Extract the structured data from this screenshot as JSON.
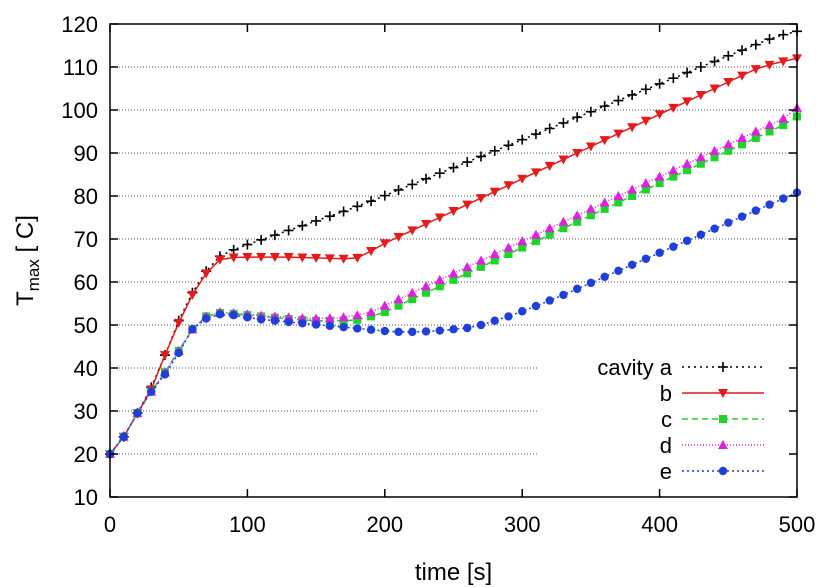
{
  "chart_data": {
    "type": "line",
    "xlabel": "time [s]",
    "ylabel_main": "T",
    "ylabel_sub": "max",
    "ylabel_rest": " [ C]",
    "xlim": [
      0,
      500
    ],
    "ylim": [
      10,
      120
    ],
    "xticks": [
      0,
      100,
      200,
      300,
      400,
      500
    ],
    "yticks": [
      10,
      20,
      30,
      40,
      50,
      60,
      70,
      80,
      90,
      100,
      110,
      120
    ],
    "grid": "horizontal-dotted",
    "legend_position": "bottom-right",
    "x": [
      0,
      10,
      20,
      30,
      40,
      50,
      60,
      70,
      80,
      90,
      100,
      110,
      120,
      130,
      140,
      150,
      160,
      170,
      180,
      190,
      200,
      210,
      220,
      230,
      240,
      250,
      260,
      270,
      280,
      290,
      300,
      310,
      320,
      330,
      340,
      350,
      360,
      370,
      380,
      390,
      400,
      410,
      420,
      430,
      440,
      450,
      460,
      470,
      480,
      490,
      500
    ],
    "series": [
      {
        "name": "cavity a",
        "color": "#000000",
        "dash": "2,4",
        "marker": "plus",
        "values": [
          20,
          24,
          29.5,
          35.5,
          43,
          51,
          57.5,
          62.5,
          66,
          67.5,
          68.7,
          69.8,
          70.9,
          72,
          73.1,
          74.2,
          75.3,
          76.4,
          77.6,
          78.8,
          80.1,
          81.4,
          82.7,
          84,
          85.3,
          86.6,
          87.9,
          89.2,
          90.5,
          91.8,
          93.1,
          94.4,
          95.7,
          97,
          98.3,
          99.6,
          100.9,
          102.2,
          103.5,
          104.8,
          106.1,
          107.4,
          108.7,
          110,
          111.3,
          112.6,
          113.9,
          115.2,
          116.5,
          117.5,
          118.3
        ]
      },
      {
        "name": "b",
        "color": "#e41a1c",
        "dash": "",
        "marker": "triangle-down",
        "values": [
          20,
          24,
          29.5,
          35,
          43,
          50.5,
          57,
          62,
          65.2,
          65.7,
          65.8,
          65.8,
          65.8,
          65.8,
          65.7,
          65.6,
          65.5,
          65.4,
          65.6,
          67.2,
          69,
          70.5,
          72,
          73.5,
          75,
          76.5,
          78,
          79.5,
          81,
          82.5,
          84,
          85.5,
          87,
          88.5,
          90,
          91.5,
          93,
          94.5,
          96,
          97.5,
          99,
          100.5,
          102,
          103.5,
          105,
          106.5,
          108,
          109.5,
          110.5,
          111.3,
          112
        ]
      },
      {
        "name": "c",
        "color": "#1fd32b",
        "dash": "6,4",
        "marker": "square",
        "values": [
          20,
          24,
          29.5,
          34.5,
          39,
          44,
          49,
          52,
          52.8,
          52.6,
          52.3,
          52,
          51.7,
          51.4,
          51.2,
          51,
          51,
          51,
          51.2,
          52,
          53,
          54.5,
          56,
          57.5,
          59,
          60.5,
          62,
          63.5,
          65,
          66.5,
          68,
          69.5,
          71,
          72.5,
          74,
          75.5,
          77,
          78.5,
          80,
          81.5,
          83,
          84.5,
          86,
          87.5,
          89,
          90.5,
          92,
          93.5,
          95,
          96.5,
          98.5
        ]
      },
      {
        "name": "d",
        "color": "#e020e0",
        "dash": "1,2",
        "marker": "triangle-up",
        "values": [
          20,
          24,
          29.5,
          34.5,
          39,
          44,
          49,
          52,
          53,
          52.8,
          52.5,
          52.2,
          52,
          51.8,
          51.6,
          51.5,
          51.6,
          51.8,
          52.3,
          53,
          54.5,
          56,
          57.5,
          59,
          60.5,
          62,
          63.5,
          65,
          66.5,
          68,
          69.5,
          71,
          72.5,
          74,
          75.5,
          77,
          78.5,
          80,
          81.5,
          83,
          84.5,
          86,
          87.5,
          89,
          90.5,
          92,
          93.5,
          95,
          96.5,
          98,
          100.5
        ]
      },
      {
        "name": "e",
        "color": "#1f3fd8",
        "dash": "2,3",
        "marker": "circle",
        "values": [
          20,
          24,
          29.5,
          34.5,
          38.5,
          43.5,
          49,
          51.5,
          52.5,
          52.3,
          51.8,
          51.3,
          51,
          50.7,
          50.4,
          50.1,
          49.8,
          49.5,
          49.2,
          48.9,
          48.6,
          48.4,
          48.4,
          48.5,
          48.7,
          49,
          49.3,
          50,
          51,
          52,
          53.2,
          54.4,
          55.7,
          57,
          58.4,
          59.8,
          61.2,
          62.6,
          64,
          65.4,
          66.8,
          68.2,
          69.6,
          71,
          72.4,
          73.8,
          75.2,
          76.6,
          78,
          79.4,
          80.8
        ]
      }
    ]
  }
}
